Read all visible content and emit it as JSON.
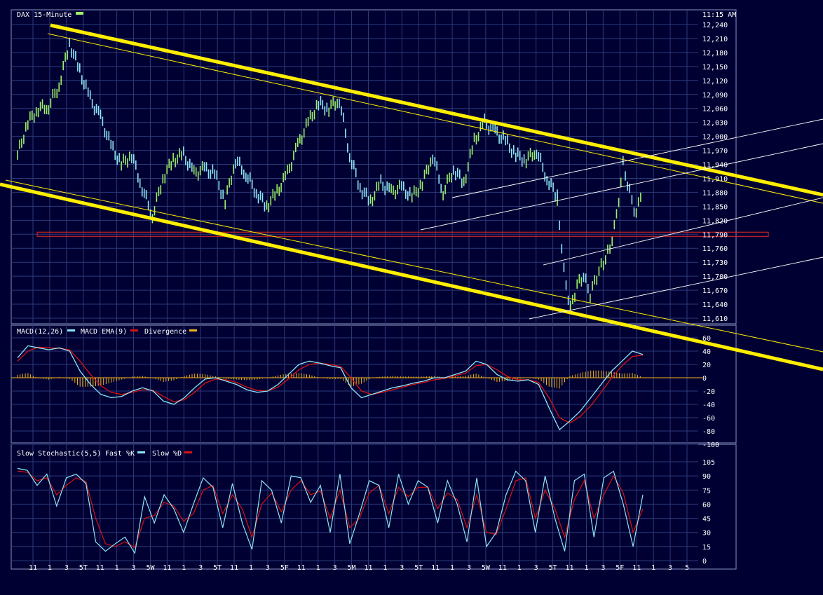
{
  "header": {
    "title": "DAX 15-Minute",
    "time": "11:15 AM"
  },
  "colors": {
    "background": "#000033",
    "grid": "#2c3a7a",
    "frame": "#8a93c4",
    "price_up": "#9ef06a",
    "price_down": "#8fe6f5",
    "macd": "#8fe6f5",
    "signal": "#dd1111",
    "divergence": "#f0b418",
    "channel": "#ffee00",
    "support": "#cc2222",
    "pitchfork": "#ffffff"
  },
  "chart_data": [
    {
      "type": "line",
      "name": "price",
      "title": "DAX 15-Minute",
      "x_ticks": [
        "11",
        "1",
        "3",
        "5T",
        "11",
        "1",
        "3",
        "5W",
        "11",
        "1",
        "3",
        "5T",
        "11",
        "1",
        "3",
        "5F",
        "11",
        "1",
        "3",
        "5M",
        "11",
        "1",
        "3",
        "5T",
        "11",
        "1",
        "3",
        "5W",
        "11",
        "1",
        "3",
        "5T",
        "11",
        "1",
        "3",
        "5F",
        "11",
        "1",
        "3",
        "5"
      ],
      "y_ticks": [
        "12,240",
        "12,210",
        "12,180",
        "12,150",
        "12,120",
        "12,090",
        "12,060",
        "12,030",
        "12,000",
        "11,970",
        "11,940",
        "11,910",
        "11,880",
        "11,850",
        "11,820",
        "11,790",
        "11,760",
        "11,730",
        "11,700",
        "11,670",
        "11,640",
        "11,610"
      ],
      "ylim": [
        11600,
        12250
      ],
      "grid": true,
      "approx_close": [
        11960,
        12030,
        12060,
        12065,
        12110,
        12200,
        12140,
        12080,
        12040,
        11980,
        11940,
        11960,
        11890,
        11830,
        11910,
        11950,
        11960,
        11920,
        11930,
        11920,
        11860,
        11950,
        11920,
        11880,
        11850,
        11880,
        11920,
        11980,
        12030,
        12070,
        12060,
        12080,
        11960,
        11890,
        11860,
        11900,
        11880,
        11890,
        11870,
        11900,
        11960,
        11880,
        11930,
        11900,
        11990,
        12030,
        12010,
        11990,
        11960,
        11950,
        11970,
        11910,
        11870,
        11870,
        11710,
        11630,
        11680,
        11700,
        11660,
        11700,
        11730,
        11760,
        11830,
        11940,
        11880,
        11830,
        11900
      ],
      "support_level": 11790,
      "annotations": []
    },
    {
      "type": "bar",
      "name": "macd",
      "title": "MACD(12,26)",
      "legend": [
        "MACD(12,26)",
        "MACD EMA(9)",
        "Divergence"
      ],
      "y_ticks": [
        "60",
        "40",
        "20",
        "0",
        "-20",
        "-40",
        "-60",
        "-80",
        "-100"
      ],
      "ylim": [
        -100,
        65
      ],
      "macd_approx": [
        30,
        48,
        45,
        42,
        45,
        40,
        10,
        -10,
        -25,
        -30,
        -28,
        -20,
        -15,
        -20,
        -35,
        -40,
        -30,
        -15,
        -2,
        0,
        -5,
        -10,
        -18,
        -22,
        -20,
        -10,
        5,
        20,
        25,
        22,
        18,
        15,
        -15,
        -30,
        -25,
        -20,
        -15,
        -12,
        -8,
        -5,
        0,
        0,
        5,
        10,
        25,
        20,
        5,
        -3,
        -5,
        -3,
        -10,
        -45,
        -78,
        -65,
        -50,
        -30,
        -10,
        10,
        25,
        40,
        35
      ],
      "signal_approx": [
        25,
        40,
        46,
        45,
        44,
        42,
        25,
        5,
        -12,
        -22,
        -25,
        -22,
        -18,
        -19,
        -28,
        -36,
        -33,
        -22,
        -8,
        -2,
        -3,
        -7,
        -14,
        -19,
        -20,
        -14,
        -2,
        12,
        20,
        22,
        20,
        17,
        0,
        -20,
        -25,
        -22,
        -18,
        -14,
        -10,
        -7,
        -3,
        -1,
        3,
        7,
        18,
        20,
        12,
        2,
        -3,
        -3,
        -7,
        -30,
        -60,
        -68,
        -58,
        -42,
        -22,
        0,
        18,
        32,
        34
      ]
    },
    {
      "type": "line",
      "name": "stochastic",
      "title": "Slow Stochastic(5,5)",
      "legend": [
        "Slow Stochastic(5,5)",
        "Fast %K",
        "Slow %D"
      ],
      "y_ticks": [
        "105",
        "90",
        "75",
        "60",
        "45",
        "30",
        "15",
        "0"
      ],
      "ylim": [
        0,
        105
      ],
      "k_approx": [
        98,
        96,
        80,
        92,
        58,
        88,
        92,
        82,
        20,
        10,
        18,
        25,
        8,
        68,
        40,
        70,
        55,
        30,
        60,
        88,
        78,
        35,
        82,
        40,
        12,
        85,
        75,
        40,
        90,
        88,
        62,
        80,
        30,
        92,
        18,
        50,
        85,
        80,
        35,
        92,
        60,
        85,
        78,
        40,
        85,
        60,
        20,
        88,
        15,
        30,
        70,
        95,
        85,
        30,
        90,
        45,
        10,
        85,
        92,
        25,
        88,
        95,
        60,
        15,
        70
      ],
      "d_approx": [
        95,
        94,
        85,
        88,
        70,
        80,
        88,
        84,
        45,
        18,
        15,
        20,
        14,
        45,
        48,
        62,
        58,
        42,
        50,
        75,
        80,
        50,
        70,
        55,
        25,
        60,
        72,
        52,
        75,
        85,
        70,
        74,
        45,
        75,
        35,
        45,
        72,
        80,
        50,
        78,
        68,
        78,
        78,
        55,
        72,
        65,
        35,
        70,
        30,
        28,
        55,
        85,
        88,
        45,
        75,
        55,
        25,
        65,
        85,
        45,
        70,
        90,
        72,
        30,
        55
      ]
    }
  ]
}
